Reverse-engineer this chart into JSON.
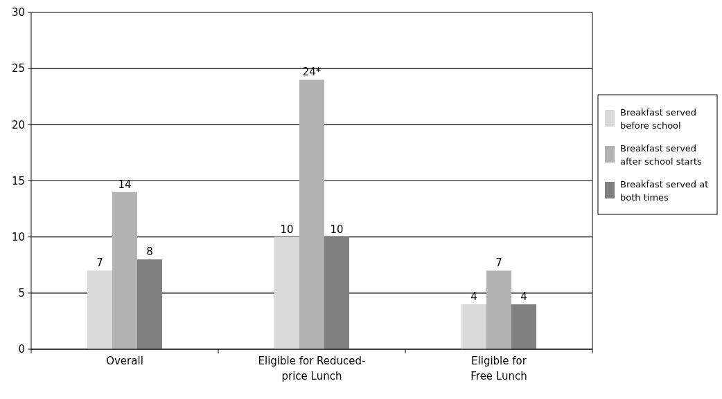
{
  "chart_data": {
    "type": "bar",
    "categories": [
      "Overall",
      "Eligible for Reduced-\nprice Lunch",
      "Eligible for\nFree Lunch"
    ],
    "series": [
      {
        "name": "Breakfast served before school",
        "color": "#d9d9d9",
        "values": [
          7,
          10,
          4
        ],
        "value_labels": [
          "7",
          "10",
          "4"
        ]
      },
      {
        "name": "Breakfast served after school starts",
        "color": "#b2b2b2",
        "values": [
          14,
          24,
          7
        ],
        "value_labels": [
          "14",
          "24*",
          "7"
        ]
      },
      {
        "name": "Breakfast served at both times",
        "color": "#808080",
        "values": [
          8,
          10,
          4
        ],
        "value_labels": [
          "8",
          "10",
          "4"
        ]
      }
    ],
    "ylim": [
      0,
      30
    ],
    "yticks": [
      0,
      5,
      10,
      15,
      20,
      25,
      30
    ],
    "grid": "y",
    "legend": "right"
  }
}
